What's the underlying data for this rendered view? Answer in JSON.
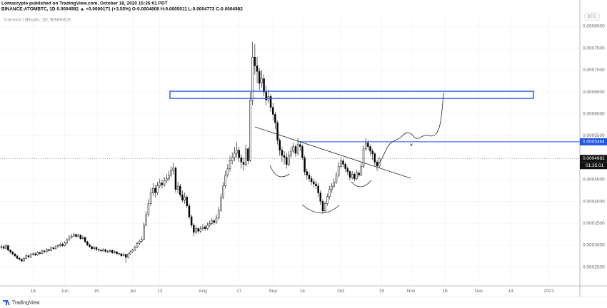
{
  "header": {
    "published": "Lomacrypto published on TradingView.com, October 18, 2020 15:35:01 PDT",
    "quote": "BINANCE:ATOMBTC, 1D  0.0004982 ▲ +0.0000171 (+3.55%) O:0.0004808 H:0.0005011 L:0.0004773 C:0.0004982"
  },
  "chart_data": {
    "type": "candlestick",
    "title": "Cosmos / Bitcoin, 1D, BINANCE",
    "currency": "BTC",
    "up_color": "#ffffff",
    "down_color": "#000000",
    "border_color": "#000000",
    "grid": true,
    "open": [
      0.000295,
      0.0002967,
      0.000293,
      0.000299,
      0.0002886,
      0.000284,
      0.00028,
      0.0002755,
      0.00027,
      0.000268,
      0.000264,
      0.00027,
      0.000276,
      0.000273,
      0.000279,
      0.0002804,
      0.000278,
      0.000283,
      0.000281,
      0.000287,
      0.0002853,
      0.00029,
      0.000288,
      0.000294,
      0.000292,
      0.0002967,
      0.000299,
      0.000302,
      0.000299,
      0.0003049,
      0.000312,
      0.000318,
      0.000321,
      0.0003245,
      0.00032,
      0.000323,
      0.000315,
      0.000318,
      0.000308,
      0.000301,
      0.0002967,
      0.000292,
      0.000295,
      0.00029,
      0.0002886,
      0.000287,
      0.00029,
      0.000286,
      0.0002853,
      0.000288,
      0.000283,
      0.000285,
      0.000281,
      0.0002804,
      0.000276,
      0.000279,
      0.0002722,
      0.00028,
      0.000285,
      0.0002886,
      0.000295,
      0.000304,
      0.000309,
      0.0003131,
      0.0003457,
      0.00037,
      0.000395,
      0.0004193,
      0.00043,
      0.00042,
      0.0004356,
      0.000442,
      0.000438,
      0.000448,
      0.000452,
      0.00046,
      0.00047,
      0.0004765,
      0.0004275,
      0.000435,
      0.000415,
      0.000403,
      0.00041,
      0.00039,
      0.000365,
      0.0003457,
      0.0003294,
      0.000338,
      0.000332,
      0.0003376,
      0.000342,
      0.000338,
      0.0003457,
      0.00035,
      0.000356,
      0.000352,
      0.0003621,
      0.00038,
      0.00041,
      0.0004356,
      0.00046,
      0.000475,
      0.0004928,
      0.0005,
      0.00051,
      0.0005173,
      0.0005,
      0.00049,
      0.0004846,
      0.00052,
      0.0004928,
      0.0006317,
      0.0007297,
      0.00071,
      0.0006971,
      0.00067,
      0.0006807,
      0.00065,
      0.0006317,
      0.00064,
      0.000615,
      0.000599,
      0.00058,
      0.00054,
      0.0005173,
      0.000505,
      0.000501,
      0.0004846,
      0.000505,
      0.000515,
      0.0005255,
      0.00051,
      0.00053,
      0.0005255,
      0.0005,
      0.0004683,
      0.00046,
      0.000452,
      0.000445,
      0.00044,
      0.0004356,
      0.0004193,
      0.0004,
      0.0003784,
      0.000395,
      0.0004111,
      0.0004275,
      0.000435,
      0.0004438,
      0.00046,
      0.00048,
      0.0004928,
      0.000485,
      0.000475,
      0.0004683,
      0.000455,
      0.000462,
      0.000452,
      0.000465,
      0.0004603,
      0.00048,
      0.00052,
      0.0005337,
      0.0005255,
      0.000515,
      0.0005091,
      0.00049,
      0.0004808
    ],
    "high": [
      0.000301,
      0.0003,
      0.000303,
      0.0003,
      0.000291,
      0.000287,
      0.000283,
      0.000278,
      0.000273,
      0.00027,
      0.000273,
      0.000279,
      0.000278,
      0.000282,
      0.000284,
      0.000283,
      0.000286,
      0.000285,
      0.00029,
      0.000289,
      0.000293,
      0.000292,
      0.000297,
      0.000296,
      0.0003,
      0.000303,
      0.000306,
      0.000305,
      0.000309,
      0.000316,
      0.000323,
      0.000326,
      0.000329,
      0.000327,
      0.000327,
      0.000325,
      0.000322,
      0.000319,
      0.00031,
      0.000304,
      0.000299,
      0.000298,
      0.000297,
      0.000293,
      0.000291,
      0.000293,
      0.000292,
      0.000289,
      0.000291,
      0.00029,
      0.000288,
      0.000287,
      0.000284,
      0.000282,
      0.000282,
      0.00028,
      0.000283,
      0.000288,
      0.000292,
      0.000299,
      0.000308,
      0.000313,
      0.00032,
      0.000352,
      0.000378,
      0.000405,
      0.00043,
      0.000442,
      0.000438,
      0.000445,
      0.000452,
      0.00045,
      0.000456,
      0.000462,
      0.00047,
      0.00048,
      0.000488,
      0.00048,
      0.000445,
      0.00044,
      0.000425,
      0.00042,
      0.000415,
      0.000395,
      0.00037,
      0.00035,
      0.000345,
      0.000342,
      0.000344,
      0.000348,
      0.000346,
      0.000352,
      0.000356,
      0.000362,
      0.00036,
      0.00037,
      0.000388,
      0.000418,
      0.000445,
      0.00047,
      0.000485,
      0.000505,
      0.000512,
      0.000525,
      0.000535,
      0.000525,
      0.000508,
      0.0005,
      0.00053,
      0.000525,
      0.00065,
      0.000765,
      0.00076,
      0.00073,
      0.000705,
      0.0007,
      0.00069,
      0.000665,
      0.000655,
      0.000645,
      0.000625,
      0.000605,
      0.000585,
      0.000545,
      0.000525,
      0.000515,
      0.00051,
      0.000515,
      0.000525,
      0.000535,
      0.00053,
      0.000545,
      0.000538,
      0.00053,
      0.000505,
      0.000475,
      0.000468,
      0.000458,
      0.000452,
      0.000448,
      0.000442,
      0.000425,
      0.000405,
      0.0004,
      0.000418,
      0.000435,
      0.000442,
      0.000452,
      0.000468,
      0.00049,
      0.000502,
      0.000498,
      0.00049,
      0.00048,
      0.000472,
      0.00047,
      0.000466,
      0.000472,
      0.00047,
      0.000488,
      0.000528,
      0.000545,
      0.00054,
      0.00053,
      0.00052,
      0.000512,
      0.000495,
      0.0005011
    ],
    "low": [
      0.000292,
      0.00029,
      0.000291,
      0.000286,
      0.000281,
      0.000277,
      0.000273,
      0.000268,
      0.000265,
      0.000261,
      0.000262,
      0.000268,
      0.00027,
      0.000271,
      0.000276,
      0.000275,
      0.000276,
      0.000279,
      0.000279,
      0.000282,
      0.000283,
      0.000285,
      0.000286,
      0.000289,
      0.00029,
      0.000294,
      0.000296,
      0.000296,
      0.000297,
      0.000302,
      0.00031,
      0.000315,
      0.000318,
      0.000317,
      0.000318,
      0.000312,
      0.000312,
      0.000305,
      0.000298,
      0.000294,
      0.000289,
      0.00029,
      0.000287,
      0.000286,
      0.000284,
      0.000285,
      0.000283,
      0.000282,
      0.000283,
      0.00028,
      0.000281,
      0.000278,
      0.000277,
      0.000273,
      0.000274,
      0.00026,
      0.00027,
      0.000278,
      0.000283,
      0.000287,
      0.000293,
      0.000301,
      0.000306,
      0.000311,
      0.000343,
      0.000365,
      0.00039,
      0.000412,
      0.00041,
      0.000415,
      0.00043,
      0.00043,
      0.000433,
      0.000442,
      0.000446,
      0.000455,
      0.000462,
      0.00042,
      0.000418,
      0.00041,
      0.000398,
      0.000395,
      0.000385,
      0.00036,
      0.00034,
      0.00032,
      0.000325,
      0.000327,
      0.000328,
      0.000333,
      0.000333,
      0.000334,
      0.000341,
      0.000346,
      0.000347,
      0.000349,
      0.000358,
      0.000376,
      0.000405,
      0.00043,
      0.000455,
      0.000468,
      0.000485,
      0.000492,
      0.0005,
      0.00049,
      0.000475,
      0.00047,
      0.00048,
      0.000485,
      0.00049,
      0.00062,
      0.00069,
      0.00067,
      0.000655,
      0.00066,
      0.00064,
      0.00062,
      0.000625,
      0.000605,
      0.000585,
      0.000565,
      0.00053,
      0.000505,
      0.00049,
      0.000485,
      0.000475,
      0.00048,
      0.0005,
      0.00051,
      0.000502,
      0.000505,
      0.000515,
      0.000495,
      0.00046,
      0.00045,
      0.000445,
      0.000438,
      0.000432,
      0.000428,
      0.00041,
      0.000392,
      0.000372,
      0.000374,
      0.00039,
      0.000405,
      0.00042,
      0.00043,
      0.00044,
      0.000455,
      0.000475,
      0.000478,
      0.000468,
      0.00046,
      0.000448,
      0.00045,
      0.000446,
      0.000448,
      0.000455,
      0.000458,
      0.000476,
      0.000515,
      0.000518,
      0.000505,
      0.000495,
      0.000482,
      0.00047,
      0.0004773
    ],
    "close": [
      0.0002967,
      0.000293,
      0.000299,
      0.0002886,
      0.000284,
      0.00028,
      0.0002755,
      0.00027,
      0.000268,
      0.000264,
      0.00027,
      0.000276,
      0.000273,
      0.000279,
      0.0002804,
      0.000278,
      0.000283,
      0.000281,
      0.000287,
      0.0002853,
      0.00029,
      0.000288,
      0.000294,
      0.000292,
      0.0002967,
      0.000299,
      0.000302,
      0.000299,
      0.0003049,
      0.000312,
      0.000318,
      0.000321,
      0.0003245,
      0.00032,
      0.000323,
      0.000315,
      0.000318,
      0.000308,
      0.000301,
      0.0002967,
      0.000292,
      0.000295,
      0.00029,
      0.0002886,
      0.000287,
      0.00029,
      0.000286,
      0.0002853,
      0.000288,
      0.000283,
      0.000285,
      0.000281,
      0.0002804,
      0.000276,
      0.000279,
      0.0002722,
      0.00028,
      0.000285,
      0.0002886,
      0.000295,
      0.000304,
      0.000309,
      0.0003131,
      0.0003457,
      0.00037,
      0.000395,
      0.0004193,
      0.00043,
      0.00042,
      0.0004356,
      0.000442,
      0.000438,
      0.000448,
      0.000452,
      0.00046,
      0.00047,
      0.0004765,
      0.0004275,
      0.000435,
      0.000415,
      0.000403,
      0.00041,
      0.00039,
      0.000365,
      0.0003457,
      0.0003294,
      0.000338,
      0.000332,
      0.0003376,
      0.000342,
      0.000338,
      0.0003457,
      0.00035,
      0.000356,
      0.000352,
      0.0003621,
      0.00038,
      0.00041,
      0.0004356,
      0.00046,
      0.000475,
      0.0004928,
      0.0005,
      0.00051,
      0.0005173,
      0.0005,
      0.00049,
      0.0004846,
      0.00052,
      0.0004928,
      0.0006317,
      0.0007297,
      0.00071,
      0.0006971,
      0.00067,
      0.0006807,
      0.00065,
      0.0006317,
      0.00064,
      0.000615,
      0.000599,
      0.00058,
      0.00054,
      0.0005173,
      0.000505,
      0.000501,
      0.0004846,
      0.000505,
      0.000515,
      0.0005255,
      0.00051,
      0.00053,
      0.0005255,
      0.0005,
      0.0004683,
      0.00046,
      0.000452,
      0.000445,
      0.00044,
      0.0004356,
      0.0004193,
      0.0004,
      0.0003784,
      0.000395,
      0.0004111,
      0.0004275,
      0.000435,
      0.0004438,
      0.00046,
      0.00048,
      0.0004928,
      0.000485,
      0.000475,
      0.0004683,
      0.000455,
      0.000462,
      0.000452,
      0.000465,
      0.0004603,
      0.00048,
      0.00052,
      0.0005337,
      0.0005255,
      0.000515,
      0.0005091,
      0.00049,
      0.0004808,
      0.0004982
    ],
    "xlim": [
      -0.6,
      255.6
    ],
    "xticks": [
      {
        "value": 14,
        "label": "18"
      },
      {
        "value": 28,
        "label": "Jun"
      },
      {
        "value": 42,
        "label": "15"
      },
      {
        "value": 58,
        "label": "Jul"
      },
      {
        "value": 70,
        "label": "13"
      },
      {
        "value": 89,
        "label": "Aug"
      },
      {
        "value": 105,
        "label": "17"
      },
      {
        "value": 120,
        "label": "Sep"
      },
      {
        "value": 133,
        "label": "14"
      },
      {
        "value": 150,
        "label": "Oct"
      },
      {
        "value": 168,
        "label": "19"
      },
      {
        "value": 181,
        "label": "Nov"
      },
      {
        "value": 196,
        "label": "16"
      },
      {
        "value": 211,
        "label": "Dec"
      },
      {
        "value": 225,
        "label": "14"
      },
      {
        "value": 242,
        "label": "2021"
      }
    ],
    "ylim": [
      0.000207,
      0.000831
    ],
    "yticks": [
      {
        "value": 0.00025,
        "label": "0.0002500"
      },
      {
        "value": 0.0003,
        "label": "0.0003000"
      },
      {
        "value": 0.00035,
        "label": "0.0003500"
      },
      {
        "value": 0.0004,
        "label": "0.0004000"
      },
      {
        "value": 0.00045,
        "label": "0.0004500"
      },
      {
        "value": 0.0005,
        "label": "0.0005000"
      },
      {
        "value": 0.00055,
        "label": "0.0005500"
      },
      {
        "value": 0.0006,
        "label": "0.0006000"
      },
      {
        "value": 0.00065,
        "label": "0.0006500"
      },
      {
        "value": 0.0007,
        "label": "0.0007000"
      },
      {
        "value": 0.00075,
        "label": "0.0007500"
      },
      {
        "value": 0.0008,
        "label": "0.0008000"
      }
    ],
    "level": {
      "value": 0.0005364,
      "color": "#1e53e5"
    },
    "last_price": {
      "value": 0.0004982,
      "countdown": "01:35:01"
    }
  },
  "footer": {
    "text": "TradingView"
  }
}
